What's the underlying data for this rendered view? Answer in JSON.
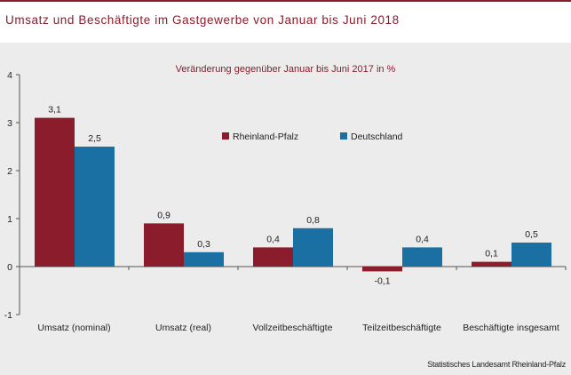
{
  "header": {
    "title": "Umsatz und Beschäftigte im Gastgewerbe von Januar bis Juni 2018"
  },
  "source": "Statistisches Landesamt Rheinland-Pfalz",
  "colors": {
    "accent": "#8a1c2b",
    "series_rlp": "#8a1c2b",
    "series_de": "#1a6fa3",
    "panel": "#ececec"
  },
  "chart_data": {
    "type": "bar",
    "title": "Veränderung gegenüber Januar bis Juni 2017 in %",
    "categories": [
      "Umsatz (nominal)",
      "Umsatz (real)",
      "Vollzeitbeschäftigte",
      "Teilzeitbeschäftigte",
      "Beschäftigte insgesamt"
    ],
    "series": [
      {
        "name": "Rheinland-Pfalz",
        "values": [
          3.1,
          0.9,
          0.4,
          -0.1,
          0.1
        ],
        "labels": [
          "3,1",
          "0,9",
          "0,4",
          "-0,1",
          "0,1"
        ],
        "color": "#8a1c2b"
      },
      {
        "name": "Deutschland",
        "values": [
          2.5,
          0.3,
          0.8,
          0.4,
          0.5
        ],
        "labels": [
          "2,5",
          "0,3",
          "0,8",
          "0,4",
          "0,5"
        ],
        "color": "#1a6fa3"
      }
    ],
    "ylim": [
      -1,
      4
    ],
    "yticks": [
      -1,
      0,
      1,
      2,
      3,
      4
    ],
    "ytick_labels": [
      "-1",
      "0",
      "1",
      "2",
      "3",
      "4"
    ],
    "xlabel": "",
    "ylabel": "",
    "grid": false,
    "legend": "top-center"
  }
}
